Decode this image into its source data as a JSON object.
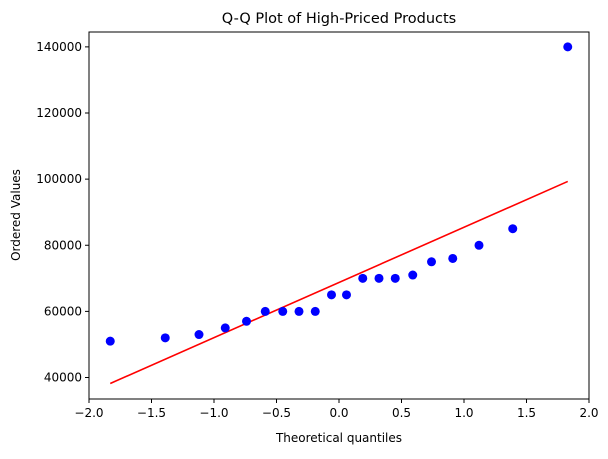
{
  "chart_data": {
    "type": "scatter",
    "title": "Q-Q Plot of High-Priced Products",
    "xlabel": "Theoretical quantiles",
    "ylabel": "Ordered Values",
    "xlim": [
      -2.0,
      2.0
    ],
    "ylim": [
      33500,
      144500
    ],
    "xticks": [
      -2.0,
      -1.5,
      -1.0,
      -0.5,
      0.0,
      0.5,
      1.0,
      1.5,
      2.0
    ],
    "xtick_labels": [
      "−2.0",
      "−1.5",
      "−1.0",
      "−0.5",
      "0.0",
      "0.5",
      "1.0",
      "1.5",
      "2.0"
    ],
    "yticks": [
      40000,
      60000,
      80000,
      100000,
      120000,
      140000
    ],
    "ytick_labels": [
      "40000",
      "60000",
      "80000",
      "100000",
      "120000",
      "140000"
    ],
    "grid": false,
    "series": [
      {
        "kind": "points",
        "color": "#0000ff",
        "points": [
          {
            "x": -1.83,
            "y": 51000
          },
          {
            "x": -1.39,
            "y": 52000
          },
          {
            "x": -1.12,
            "y": 53000
          },
          {
            "x": -0.91,
            "y": 55000
          },
          {
            "x": -0.74,
            "y": 57000
          },
          {
            "x": -0.59,
            "y": 60000
          },
          {
            "x": -0.45,
            "y": 60000
          },
          {
            "x": -0.32,
            "y": 60000
          },
          {
            "x": -0.19,
            "y": 60000
          },
          {
            "x": -0.06,
            "y": 65000
          },
          {
            "x": 0.06,
            "y": 65000
          },
          {
            "x": 0.19,
            "y": 70000
          },
          {
            "x": 0.32,
            "y": 70000
          },
          {
            "x": 0.45,
            "y": 70000
          },
          {
            "x": 0.59,
            "y": 71000
          },
          {
            "x": 0.74,
            "y": 75000
          },
          {
            "x": 0.91,
            "y": 76000
          },
          {
            "x": 1.12,
            "y": 80000
          },
          {
            "x": 1.39,
            "y": 85000
          },
          {
            "x": 1.83,
            "y": 140000
          }
        ]
      },
      {
        "kind": "line",
        "color": "#ff0000",
        "points": [
          {
            "x": -1.83,
            "y": 38200
          },
          {
            "x": 1.83,
            "y": 99300
          }
        ]
      }
    ]
  }
}
